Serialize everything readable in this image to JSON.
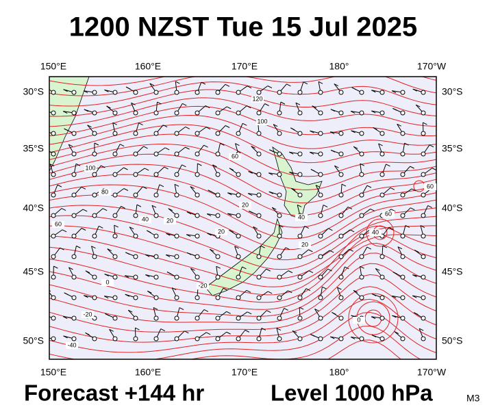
{
  "header": {
    "title": "1200 NZST Tue 15 Jul 2025"
  },
  "map": {
    "lon_labels": [
      "150°E",
      "160°E",
      "170°E",
      "180°",
      "170°W"
    ],
    "lat_labels": [
      "30°S",
      "35°S",
      "40°S",
      "45°S",
      "50°S"
    ],
    "contour_labels": [
      "120",
      "100",
      "100",
      "80",
      "60",
      "40",
      "20",
      "60",
      "20",
      "20",
      "40",
      "20",
      "60",
      "40",
      "60",
      "0",
      "-20",
      "-40",
      "0",
      "-20"
    ]
  },
  "footer": {
    "forecast": "Forecast +144 hr",
    "level": "Level 1000 hPa",
    "model": "M3"
  }
}
